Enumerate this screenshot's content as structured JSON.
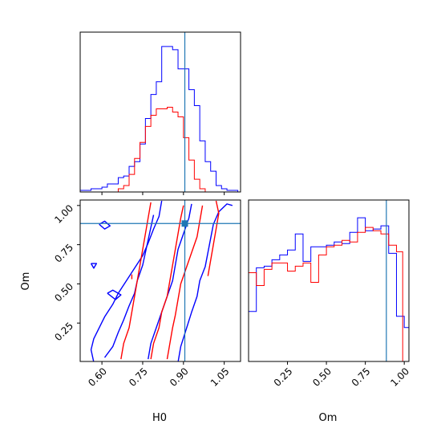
{
  "chart_data": {
    "type": "corner",
    "parameters": [
      "H0",
      "Om"
    ],
    "truth": {
      "H0": 0.905,
      "Om": 0.885
    },
    "colors": {
      "blue": "#0000ff",
      "red": "#ff0000",
      "truth": "#1f77b4"
    },
    "panels": [
      {
        "id": "hist-H0",
        "type": "step-histogram",
        "x_param": "H0",
        "xlim": [
          0.52,
          1.11
        ],
        "xticks": [
          0.6,
          0.75,
          0.9,
          1.05
        ],
        "ylim": [
          0,
          1
        ],
        "series": [
          {
            "color": "blue",
            "edges": [
              0.52,
              0.54,
              0.56,
              0.58,
              0.6,
              0.62,
              0.64,
              0.66,
              0.68,
              0.7,
              0.72,
              0.74,
              0.76,
              0.78,
              0.8,
              0.82,
              0.84,
              0.86,
              0.88,
              0.9,
              0.92,
              0.94,
              0.96,
              0.98,
              1.0,
              1.02,
              1.04,
              1.06,
              1.08,
              1.1
            ],
            "values": [
              0.01,
              0.01,
              0.02,
              0.02,
              0.03,
              0.05,
              0.05,
              0.09,
              0.1,
              0.16,
              0.19,
              0.3,
              0.46,
              0.61,
              0.69,
              0.91,
              0.91,
              0.89,
              0.77,
              0.77,
              0.64,
              0.54,
              0.32,
              0.19,
              0.13,
              0.04,
              0.02,
              0.01,
              0.01
            ]
          },
          {
            "color": "red",
            "edges": [
              0.52,
              0.54,
              0.56,
              0.58,
              0.6,
              0.62,
              0.64,
              0.66,
              0.68,
              0.7,
              0.72,
              0.74,
              0.76,
              0.78,
              0.8,
              0.82,
              0.84,
              0.86,
              0.88,
              0.9,
              0.92,
              0.94,
              0.96,
              0.98,
              1.0,
              1.02,
              1.04,
              1.06,
              1.08,
              1.1
            ],
            "values": [
              0,
              0,
              0,
              0,
              0,
              0,
              0,
              0.02,
              0.04,
              0.11,
              0.21,
              0.31,
              0.41,
              0.48,
              0.52,
              0.52,
              0.53,
              0.5,
              0.47,
              0.34,
              0.2,
              0.08,
              0.02,
              0,
              0,
              0,
              0,
              0,
              0
            ]
          }
        ],
        "truth_line": "H0"
      },
      {
        "id": "contour-H0-Om",
        "type": "contour",
        "x_param": "H0",
        "y_param": "Om",
        "xlim": [
          0.52,
          1.11
        ],
        "ylim": [
          0.005,
          1.035
        ],
        "xticks": [
          0.6,
          0.75,
          0.9,
          1.05
        ],
        "xtick_labels": [
          "0.60",
          "0.75",
          "0.90",
          "1.05"
        ],
        "yticks": [
          0.25,
          0.5,
          0.75,
          1.0
        ],
        "ytick_labels": [
          "0.25",
          "0.50",
          "0.75",
          "1.00"
        ],
        "ylabel": "Om",
        "xlabel": "H0",
        "truth_point": true,
        "contours": [
          {
            "color": "blue",
            "points": [
              [
                0.57,
                0.0
              ],
              [
                0.56,
                0.08
              ],
              [
                0.57,
                0.15
              ],
              [
                0.59,
                0.22
              ],
              [
                0.61,
                0.29
              ],
              [
                0.64,
                0.37
              ],
              [
                0.66,
                0.44
              ],
              [
                0.69,
                0.52
              ],
              [
                0.72,
                0.6
              ],
              [
                0.75,
                0.68
              ],
              [
                0.77,
                0.76
              ],
              [
                0.79,
                0.85
              ],
              [
                0.81,
                0.93
              ],
              [
                0.82,
                1.03
              ]
            ]
          },
          {
            "color": "blue",
            "points": [
              [
                0.88,
                0.0
              ],
              [
                0.89,
                0.1
              ],
              [
                0.91,
                0.21
              ],
              [
                0.93,
                0.32
              ],
              [
                0.95,
                0.42
              ],
              [
                0.96,
                0.52
              ],
              [
                0.98,
                0.61
              ],
              [
                0.99,
                0.7
              ],
              [
                1.0,
                0.79
              ],
              [
                1.01,
                0.88
              ],
              [
                1.03,
                0.96
              ],
              [
                1.06,
                1.01
              ],
              [
                1.08,
                1.0
              ]
            ]
          },
          {
            "color": "blue",
            "points": [
              [
                0.61,
                0.03
              ],
              [
                0.64,
                0.1
              ],
              [
                0.66,
                0.19
              ],
              [
                0.68,
                0.27
              ],
              [
                0.7,
                0.36
              ],
              [
                0.72,
                0.44
              ],
              [
                0.73,
                0.52
              ],
              [
                0.75,
                0.62
              ],
              [
                0.76,
                0.7
              ],
              [
                0.77,
                0.78
              ],
              [
                0.78,
                0.86
              ],
              [
                0.79,
                0.94
              ]
            ]
          },
          {
            "color": "blue",
            "points": [
              [
                0.77,
                0.02
              ],
              [
                0.78,
                0.12
              ],
              [
                0.8,
                0.22
              ],
              [
                0.82,
                0.32
              ],
              [
                0.84,
                0.42
              ],
              [
                0.86,
                0.52
              ],
              [
                0.87,
                0.62
              ],
              [
                0.88,
                0.72
              ],
              [
                0.9,
                0.82
              ],
              [
                0.92,
                0.92
              ],
              [
                0.93,
                1.01
              ]
            ]
          },
          {
            "color": "blue",
            "points": [
              [
                0.59,
                0.88
              ],
              [
                0.61,
                0.85
              ],
              [
                0.63,
                0.87
              ],
              [
                0.61,
                0.9
              ],
              [
                0.59,
                0.88
              ]
            ]
          },
          {
            "color": "blue",
            "points": [
              [
                0.56,
                0.63
              ],
              [
                0.57,
                0.6
              ],
              [
                0.58,
                0.63
              ],
              [
                0.56,
                0.63
              ]
            ]
          },
          {
            "color": "blue",
            "points": [
              [
                0.62,
                0.44
              ],
              [
                0.65,
                0.4
              ],
              [
                0.67,
                0.43
              ],
              [
                0.64,
                0.46
              ],
              [
                0.62,
                0.44
              ]
            ]
          },
          {
            "color": "red",
            "points": [
              [
                0.67,
                0.02
              ],
              [
                0.68,
                0.12
              ],
              [
                0.7,
                0.22
              ],
              [
                0.71,
                0.32
              ],
              [
                0.72,
                0.42
              ],
              [
                0.73,
                0.52
              ],
              [
                0.74,
                0.62
              ],
              [
                0.75,
                0.72
              ],
              [
                0.76,
                0.82
              ],
              [
                0.77,
                0.92
              ],
              [
                0.78,
                1.02
              ]
            ]
          },
          {
            "color": "red",
            "points": [
              [
                0.78,
                0.02
              ],
              [
                0.79,
                0.12
              ],
              [
                0.81,
                0.22
              ],
              [
                0.82,
                0.32
              ],
              [
                0.84,
                0.42
              ],
              [
                0.85,
                0.52
              ],
              [
                0.86,
                0.62
              ],
              [
                0.87,
                0.72
              ],
              [
                0.88,
                0.82
              ],
              [
                0.89,
                0.92
              ],
              [
                0.9,
                1.0
              ]
            ]
          },
          {
            "color": "red",
            "points": [
              [
                0.84,
                0.02
              ],
              [
                0.85,
                0.12
              ],
              [
                0.86,
                0.22
              ],
              [
                0.87,
                0.3
              ],
              [
                0.88,
                0.4
              ],
              [
                0.89,
                0.5
              ],
              [
                0.91,
                0.6
              ],
              [
                0.93,
                0.7
              ],
              [
                0.95,
                0.8
              ],
              [
                0.96,
                0.9
              ],
              [
                0.97,
                1.0
              ]
            ]
          },
          {
            "color": "red",
            "points": [
              [
                0.99,
                0.55
              ],
              [
                1.0,
                0.65
              ],
              [
                1.01,
                0.75
              ],
              [
                1.02,
                0.85
              ],
              [
                1.03,
                0.95
              ],
              [
                1.02,
                1.03
              ]
            ]
          },
          {
            "color": "red",
            "points": [
              [
                0.71,
                0.56
              ],
              [
                0.71,
                0.53
              ]
            ]
          }
        ]
      },
      {
        "id": "hist-Om",
        "type": "step-histogram",
        "x_param": "Om",
        "xlim": [
          0.0,
          1.03
        ],
        "xticks": [
          0.25,
          0.5,
          0.75,
          1.0
        ],
        "xtick_labels": [
          "0.25",
          "0.50",
          "0.75",
          "1.00"
        ],
        "xlabel": "Om",
        "ylim": [
          0,
          1
        ],
        "series": [
          {
            "color": "blue",
            "edges": [
              0.0,
              0.05,
              0.1,
              0.15,
              0.2,
              0.25,
              0.3,
              0.35,
              0.4,
              0.45,
              0.5,
              0.55,
              0.6,
              0.65,
              0.7,
              0.75,
              0.8,
              0.85,
              0.9,
              0.95,
              1.0,
              1.03
            ],
            "values": [
              0.31,
              0.58,
              0.59,
              0.63,
              0.66,
              0.69,
              0.79,
              0.62,
              0.71,
              0.71,
              0.72,
              0.74,
              0.73,
              0.8,
              0.89,
              0.81,
              0.82,
              0.84,
              0.67,
              0.28,
              0.21
            ]
          },
          {
            "color": "red",
            "edges": [
              0.0,
              0.05,
              0.1,
              0.15,
              0.2,
              0.25,
              0.3,
              0.35,
              0.4,
              0.45,
              0.5,
              0.55,
              0.6,
              0.65,
              0.7,
              0.75,
              0.8,
              0.85,
              0.9,
              0.95,
              0.99
            ],
            "values": [
              0.55,
              0.47,
              0.57,
              0.61,
              0.61,
              0.56,
              0.59,
              0.61,
              0.49,
              0.66,
              0.71,
              0.72,
              0.75,
              0.74,
              0.8,
              0.83,
              0.81,
              0.79,
              0.72,
              0.68
            ]
          }
        ],
        "truth_line": "Om"
      }
    ]
  }
}
